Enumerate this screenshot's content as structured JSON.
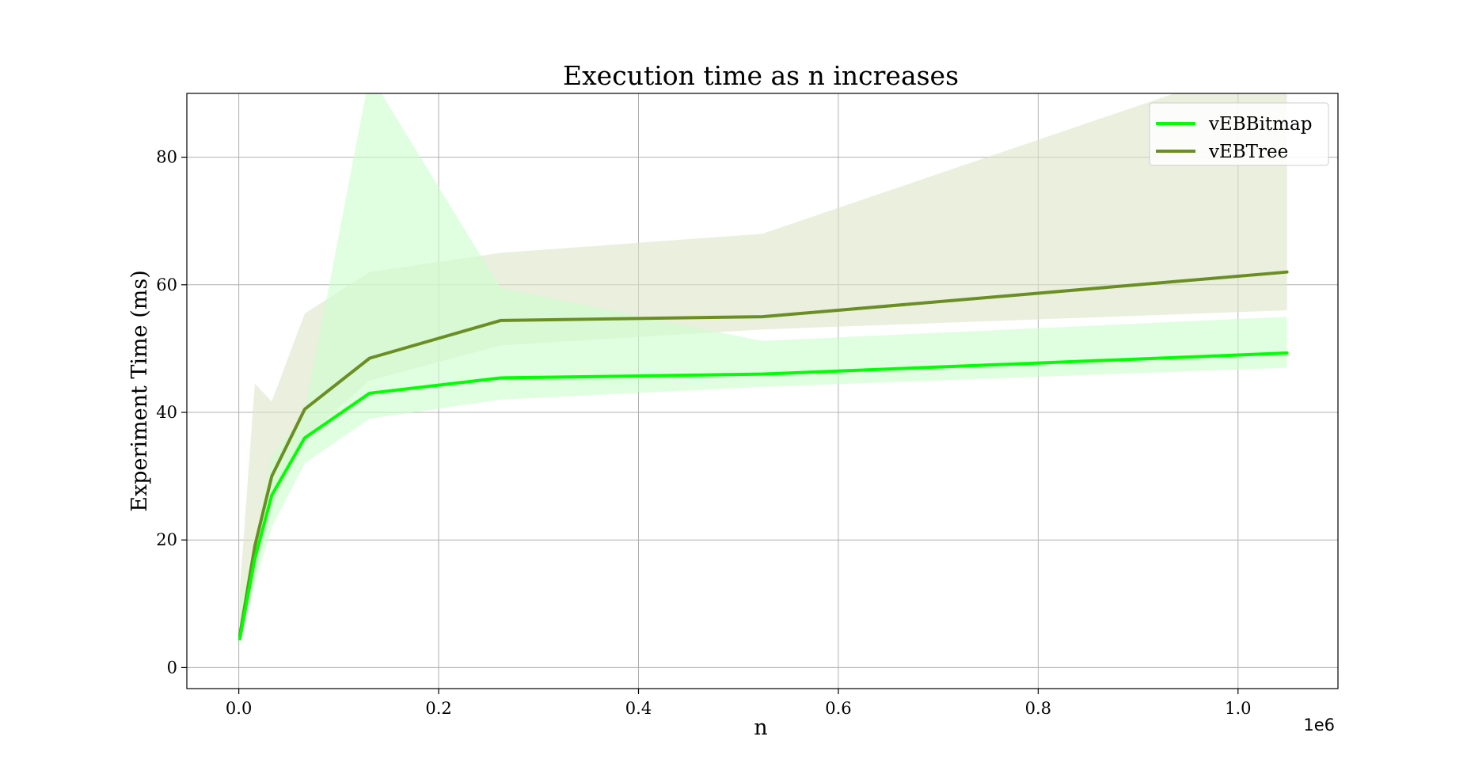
{
  "chart_data": {
    "type": "line",
    "title": "Execution time as n increases",
    "xlabel": "n",
    "ylabel": "Experiment Time (ms)",
    "x_offset_label": "1e6",
    "xlim": [
      -0.052,
      1.1
    ],
    "ylim": [
      -3.3,
      90
    ],
    "x_ticks": [
      0.0,
      0.2,
      0.4,
      0.6,
      0.8,
      1.0
    ],
    "x_tick_labels": [
      "0.0",
      "0.2",
      "0.4",
      "0.6",
      "0.8",
      "1.0"
    ],
    "y_ticks": [
      0,
      20,
      40,
      60,
      80
    ],
    "y_tick_labels": [
      "0",
      "20",
      "40",
      "60",
      "80"
    ],
    "grid": true,
    "legend_position": "upper right",
    "x": [
      0.001,
      0.016,
      0.033,
      0.066,
      0.131,
      0.262,
      0.524,
      1.049
    ],
    "series": [
      {
        "name": "vEBBitmap",
        "color": "#00ff00",
        "band_color": "#ccffcc",
        "values": [
          4.5,
          17,
          27,
          36,
          43,
          45.4,
          46,
          49.3
        ],
        "lower": [
          3.5,
          13,
          22,
          32,
          39,
          42,
          44,
          47
        ],
        "upper": [
          10,
          20,
          33,
          40,
          93,
          59.5,
          51.2,
          55
        ]
      },
      {
        "name": "vEBTree",
        "color": "#6b8e23",
        "band_color": "#dce5c8",
        "values": [
          5,
          19,
          30,
          40.5,
          48.5,
          54.4,
          55,
          62
        ],
        "lower": [
          3.5,
          14,
          25,
          36,
          45,
          50.5,
          53,
          56
        ],
        "upper": [
          12,
          44.5,
          41.7,
          55.5,
          62,
          65,
          68,
          96
        ]
      }
    ]
  }
}
